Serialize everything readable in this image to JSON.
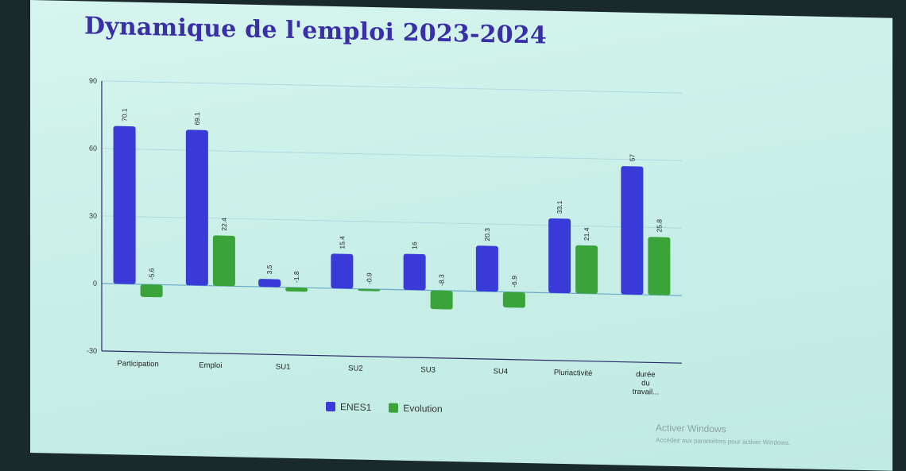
{
  "title": "Dynamique de l'emploi 2023-2024",
  "chart_data": {
    "type": "bar",
    "categories": [
      "Participation",
      "Emploi",
      "SU1",
      "SU2",
      "SU3",
      "SU4",
      "Pluriactivité",
      "durée du travail..."
    ],
    "series": [
      {
        "name": "ENES1",
        "values": [
          70.1,
          69.1,
          3.5,
          15.4,
          16,
          20.3,
          33.1,
          57
        ],
        "color": "#3a3ad8"
      },
      {
        "name": "Evolution",
        "values": [
          -5.6,
          22.4,
          -1.8,
          -0.9,
          -8.3,
          -6.9,
          21.4,
          25.8
        ],
        "color": "#3aa33a"
      }
    ],
    "value_labels": {
      "ENES1": [
        "70.1",
        "69.1",
        "3.5",
        "15.4",
        "16",
        "20.3",
        "33.1",
        "57"
      ],
      "Evolution": [
        "-5.6",
        "22.4",
        "-1.8",
        "-0.9",
        "-8.3",
        "-6.9",
        "21.4",
        "25.8"
      ]
    },
    "yticks": [
      90,
      60,
      30,
      0,
      -30
    ],
    "ylim": [
      -30,
      90
    ],
    "xlabel": "",
    "ylabel": "",
    "grid": true,
    "legend": "bottom"
  },
  "watermark": {
    "line1": "Activer Windows",
    "line2": "Accédez aux paramètres pour activer Windows."
  }
}
